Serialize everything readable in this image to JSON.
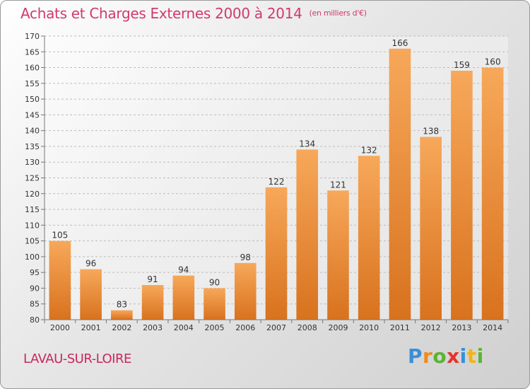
{
  "header": {
    "title": "Achats et Charges Externes 2000 à 2014",
    "unit": "(en milliers d'€)"
  },
  "footer": {
    "place": "LAVAU-SUR-LOIRE",
    "logo": "Proxiti"
  },
  "colors": {
    "bar_light": "#f7a85a",
    "bar_dark": "#d8721e",
    "title": "#d23a6a"
  },
  "chart_data": {
    "type": "bar",
    "title": "Achats et Charges Externes 2000 à 2014",
    "subtitle": "(en milliers d'€)",
    "xlabel": "",
    "ylabel": "",
    "categories": [
      "2000",
      "2001",
      "2002",
      "2003",
      "2004",
      "2005",
      "2006",
      "2007",
      "2008",
      "2009",
      "2010",
      "2011",
      "2012",
      "2013",
      "2014"
    ],
    "values": [
      105,
      96,
      83,
      91,
      94,
      90,
      98,
      122,
      134,
      121,
      132,
      166,
      138,
      159,
      160
    ],
    "ylim": [
      80,
      170
    ],
    "yticks": [
      80,
      85,
      90,
      95,
      100,
      105,
      110,
      115,
      120,
      125,
      130,
      135,
      140,
      145,
      150,
      155,
      160,
      165,
      170
    ],
    "grid": true,
    "data_labels": true
  }
}
